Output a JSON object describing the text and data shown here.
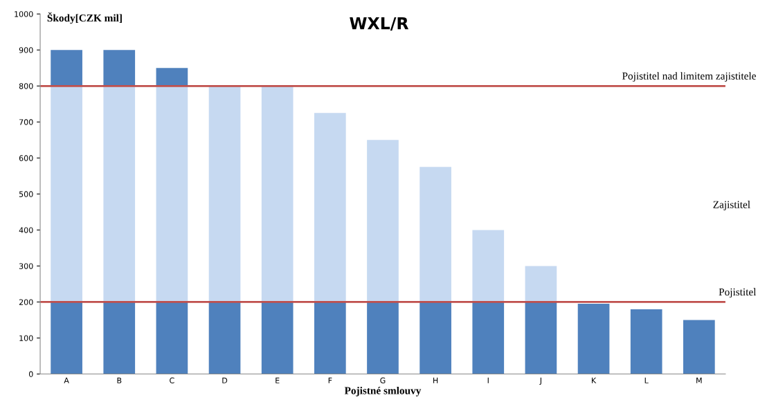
{
  "chart_data": {
    "type": "bar",
    "title": "WXL/R",
    "xlabel": "Pojistné smlouvy",
    "ylabel": "Škody[CZK mil]",
    "categories": [
      "A",
      "B",
      "C",
      "D",
      "E",
      "F",
      "G",
      "H",
      "I",
      "J",
      "K",
      "L",
      "M"
    ],
    "stacked": true,
    "series": [
      {
        "color": "#4f81bd",
        "values": [
          200,
          200,
          200,
          200,
          200,
          200,
          200,
          200,
          200,
          200,
          195,
          180,
          150
        ]
      },
      {
        "color": "#c6d9f1",
        "values": [
          600,
          600,
          600,
          600,
          600,
          525,
          450,
          375,
          200,
          100,
          0,
          0,
          0
        ]
      },
      {
        "color": "#4f81bd",
        "values": [
          100,
          100,
          50,
          0,
          0,
          0,
          0,
          0,
          0,
          0,
          0,
          0,
          0
        ]
      }
    ],
    "ylim": [
      0,
      1000
    ],
    "yticks": [
      0,
      100,
      200,
      300,
      400,
      500,
      600,
      700,
      800,
      900,
      1000
    ],
    "ref_lines": [
      {
        "axis": "y",
        "value": 800,
        "label": "Pojistitel nad limitem zajistitele",
        "color": "#c0504d"
      },
      {
        "axis": "y",
        "value": 200,
        "label": "Pojistitel",
        "color": "#c0504d"
      }
    ],
    "annotations": [
      "Zajistitel"
    ],
    "grid": false,
    "legend": false
  }
}
